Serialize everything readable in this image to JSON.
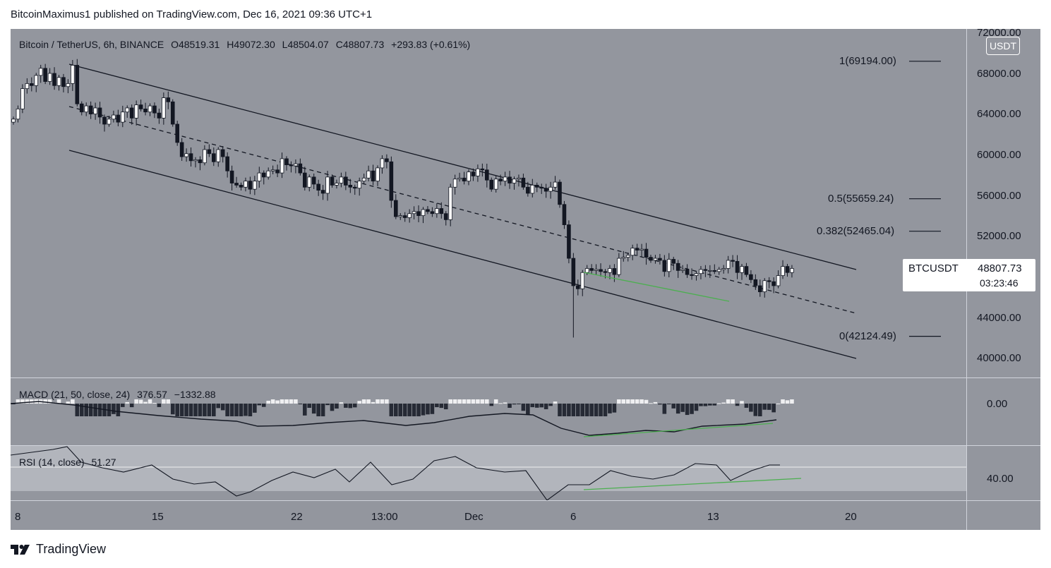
{
  "header": {
    "publisher": "BitcoinMaximus1 published on TradingView.com, Dec 16, 2021 09:36 UTC+1"
  },
  "symbol": {
    "name": "Bitcoin / TetherUS, 6h, BINANCE",
    "open": "O48519.31",
    "high": "H49072.30",
    "low": "L48504.07",
    "close": "C48807.73",
    "change": "+293.83 (+0.61%)"
  },
  "price_axis": {
    "unit": "USDT",
    "labels": [
      "72000.00",
      "68000.00",
      "64000.00",
      "60000.00",
      "56000.00",
      "52000.00",
      "48000.00",
      "44000.00",
      "40000.00"
    ]
  },
  "price_tag": {
    "symbol": "BTCUSDT",
    "price": "48807.73",
    "countdown": "03:23:46"
  },
  "fib_levels": [
    {
      "label": "1(69194.00)",
      "value": 69194.0
    },
    {
      "label": "0.5(55659.24)",
      "value": 55659.24
    },
    {
      "label": "0.382(52465.04)",
      "value": 52465.04
    },
    {
      "label": "0(42124.49)",
      "value": 42124.49
    }
  ],
  "macd": {
    "title": "MACD (21, 50, close, 24)",
    "v1": "376.57",
    "v2": "−1332.88",
    "axis_label": "0.00"
  },
  "rsi": {
    "title": "RSI (14, close)",
    "value": "51.27",
    "axis_label": "40.00"
  },
  "x_axis": {
    "labels": [
      "8",
      "15",
      "22",
      "13:00",
      "Dec",
      "6",
      "13",
      "20"
    ]
  },
  "footer": {
    "brand": "TradingView"
  },
  "colors": {
    "background": "#93969e",
    "candle_up": "#ffffff",
    "candle_down": "#131722",
    "divergence": "#4caf50"
  },
  "chart_data": {
    "type": "candlestick",
    "ylim": [
      38800,
      72000
    ],
    "channel_upper": [
      [
        -0.0,
        68800
      ],
      [
        1.0,
        48200
      ]
    ],
    "close_series": [
      63500,
      64500,
      66500,
      67000,
      66800,
      67800,
      68500,
      67200,
      68000,
      66800,
      67600,
      66700,
      67000,
      68800,
      65000,
      64200,
      64800,
      64000,
      64600,
      63700,
      63000,
      63500,
      63900,
      63200,
      64200,
      64600,
      63600,
      64900,
      64500,
      64200,
      64800,
      64100,
      63600,
      65600,
      65200,
      63000,
      61200,
      59800,
      60100,
      59400,
      59500,
      59200,
      60500,
      60100,
      59300,
      60500,
      59800,
      58400,
      57200,
      57000,
      56800,
      57400,
      56600,
      57400,
      58200,
      57800,
      58400,
      58500,
      58200,
      59600,
      59000,
      58900,
      59100,
      58200,
      56800,
      57800,
      57100,
      56500,
      56200,
      57800,
      57000,
      57200,
      57800,
      57000,
      56800,
      56700,
      57400,
      57700,
      58400,
      57400,
      58700,
      59600,
      59300,
      55500,
      53900,
      54000,
      53800,
      54200,
      54400,
      54000,
      54600,
      54400,
      54200,
      54700,
      54200,
      53600,
      56800,
      57600,
      57700,
      57400,
      58300,
      57900,
      58600,
      58500,
      57500,
      56600,
      57600,
      57400,
      57800,
      57200,
      57600,
      57700,
      56800,
      56200,
      57000,
      56800,
      56700,
      56400,
      56800,
      57300,
      55100,
      53100,
      49800,
      47100,
      46800,
      48400,
      48800,
      48600,
      48700,
      48500,
      48400,
      48800,
      48200,
      49800,
      49900,
      50100,
      50800,
      50600,
      50700,
      49900,
      49600,
      49800,
      49600,
      48500,
      49700,
      49300,
      48600,
      48700,
      48200,
      48100,
      48300,
      48700,
      48600,
      48600,
      48500,
      48700,
      48800,
      49600,
      49500,
      48400,
      49000,
      48200,
      47700,
      47100,
      46500,
      47600,
      47500,
      47100,
      48100,
      49000,
      48400,
      48800
    ]
  }
}
